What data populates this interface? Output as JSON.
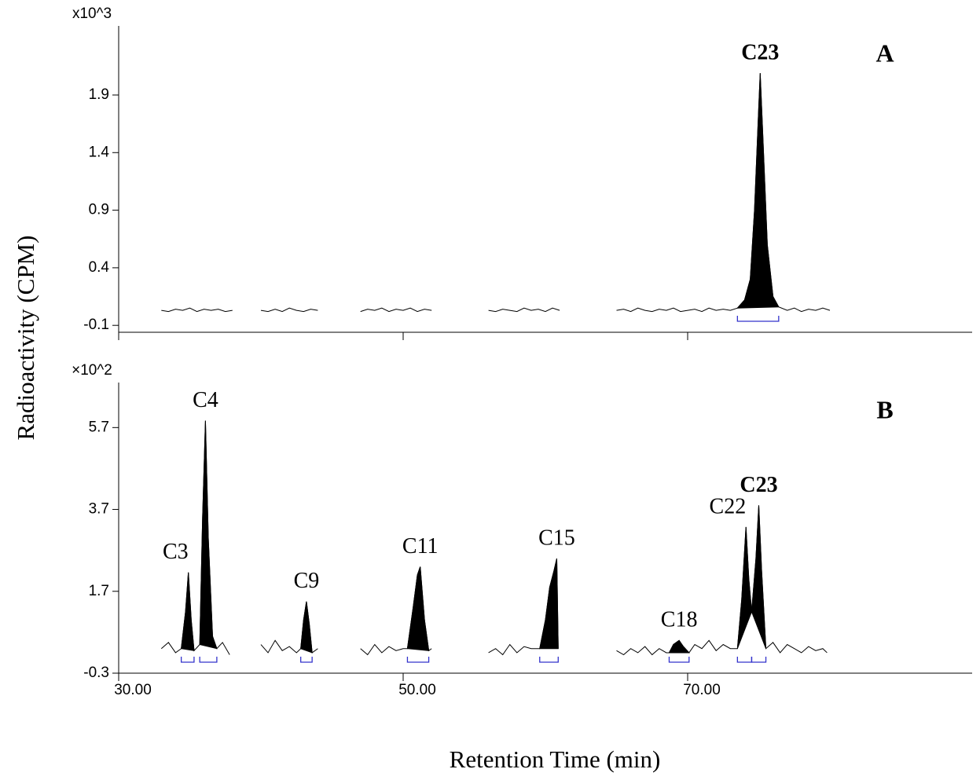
{
  "chart_data": [
    {
      "type": "line",
      "panel": "A",
      "exponent": "x10^3",
      "y_label": "Radioactivity (CPM)",
      "xlim": [
        30,
        90
      ],
      "ylim": [
        -0.16,
        2.5
      ],
      "yticks": [
        -0.1,
        0.4,
        0.9,
        1.4,
        1.9
      ],
      "color": "#000000",
      "bracket_color": "#3333cc",
      "x": [
        33,
        33.5,
        34,
        34.5,
        35,
        35.5,
        36,
        36.5,
        37,
        37.5,
        38,
        39,
        40,
        40.5,
        41,
        41.5,
        42,
        42.5,
        43,
        43.5,
        44,
        45.5,
        47,
        47.5,
        48,
        48.5,
        49,
        49.5,
        50,
        50.5,
        51,
        51.5,
        52,
        54,
        56,
        56.5,
        57,
        57.5,
        58,
        58.5,
        59,
        59.5,
        60,
        60.5,
        61,
        63,
        65,
        65.5,
        66,
        66.5,
        67,
        67.5,
        68,
        68.5,
        69,
        69.5,
        70,
        70.5,
        71,
        71.5,
        72,
        72.5,
        73,
        73.5,
        74,
        74.4,
        74.7,
        75,
        75.1,
        75.3,
        75.6,
        76,
        76.4,
        77,
        77.5,
        78,
        78.5,
        79,
        79.5,
        80
      ],
      "values": [
        0.03,
        0.02,
        0.04,
        0.03,
        0.05,
        0.02,
        0.04,
        0.03,
        0.04,
        0.02,
        0.03,
        null,
        0.03,
        0.02,
        0.04,
        0.02,
        0.05,
        0.03,
        0.02,
        0.04,
        0.03,
        null,
        0.02,
        0.04,
        0.03,
        0.05,
        0.02,
        0.04,
        0.03,
        0.05,
        0.02,
        0.04,
        0.03,
        null,
        0.03,
        0.02,
        0.04,
        0.03,
        0.02,
        0.05,
        0.03,
        0.04,
        0.02,
        0.05,
        0.03,
        null,
        0.03,
        0.04,
        0.02,
        0.05,
        0.03,
        0.02,
        0.04,
        0.03,
        0.05,
        0.02,
        0.03,
        0.04,
        0.02,
        0.05,
        0.03,
        0.04,
        0.03,
        0.05,
        0.12,
        0.3,
        0.9,
        1.8,
        2.09,
        1.5,
        0.6,
        0.15,
        0.06,
        0.03,
        0.05,
        0.02,
        0.04,
        0.03,
        0.05,
        0.03
      ],
      "peaks": [
        {
          "label": "C23",
          "start": 73.5,
          "end": 76.4,
          "bold": true
        }
      ]
    },
    {
      "type": "line",
      "panel": "B",
      "exponent": "×10^2",
      "x_label": "Retention Time (min)",
      "xlim": [
        30,
        90
      ],
      "ylim": [
        -0.3,
        6.8
      ],
      "yticks": [
        -0.3,
        1.7,
        3.7,
        5.7
      ],
      "xticks": [
        {
          "value": 30,
          "label": "30.00"
        },
        {
          "value": 50,
          "label": "50.00"
        },
        {
          "value": 70,
          "label": "70.00"
        }
      ],
      "color": "#000000",
      "bracket_color": "#3333cc",
      "x": [
        33,
        33.5,
        34,
        34.4,
        34.7,
        34.9,
        35.1,
        35.3,
        35.7,
        35.9,
        36.1,
        36.3,
        36.6,
        36.9,
        37.3,
        37.8,
        39,
        40,
        40.5,
        41,
        41.5,
        42,
        42.5,
        42.8,
        43.0,
        43.2,
        43.4,
        43.6,
        44,
        45.5,
        47,
        47.5,
        48,
        48.5,
        49,
        49.5,
        50,
        50.3,
        50.7,
        51.0,
        51.2,
        51.5,
        51.8,
        52,
        54,
        56,
        56.5,
        57,
        57.5,
        58,
        58.5,
        59,
        59.6,
        60,
        60.3,
        60.6,
        60.8,
        60.9,
        63,
        65,
        65.5,
        66,
        66.5,
        67,
        67.5,
        68,
        68.5,
        68.7,
        69.0,
        69.4,
        69.7,
        70.1,
        70.5,
        71,
        71.5,
        72,
        72.5,
        73,
        73.5,
        73.8,
        74.1,
        74.3,
        74.5,
        74.8,
        75.0,
        75.2,
        75.5,
        76,
        76.5,
        77,
        77.5,
        78,
        78.5,
        79,
        79.5,
        79.8
      ],
      "values": [
        0.3,
        0.45,
        0.2,
        0.3,
        1.2,
        2.16,
        1.0,
        0.25,
        0.4,
        3.5,
        5.87,
        3.0,
        0.6,
        0.3,
        0.45,
        0.15,
        null,
        0.4,
        0.2,
        0.5,
        0.25,
        0.35,
        0.2,
        0.3,
        1.0,
        1.45,
        0.9,
        0.2,
        0.3,
        null,
        0.3,
        0.15,
        0.4,
        0.2,
        0.35,
        0.25,
        0.3,
        0.3,
        1.3,
        2.1,
        2.3,
        1.0,
        0.25,
        0.3,
        null,
        0.2,
        0.3,
        0.15,
        0.4,
        0.2,
        0.35,
        0.3,
        0.3,
        1.0,
        1.8,
        2.2,
        2.5,
        0.3,
        null,
        0.25,
        0.15,
        0.3,
        0.2,
        0.35,
        0.15,
        0.3,
        0.2,
        0.2,
        0.4,
        0.5,
        0.35,
        0.2,
        0.4,
        0.3,
        0.5,
        0.25,
        0.4,
        0.3,
        0.3,
        1.5,
        3.27,
        2.0,
        1.2,
        2.5,
        3.8,
        2.2,
        0.3,
        0.45,
        0.2,
        0.4,
        0.3,
        0.2,
        0.35,
        0.25,
        0.3,
        0.2
      ],
      "peaks": [
        {
          "label": "C3",
          "start": 34.4,
          "end": 35.3
        },
        {
          "label": "C4",
          "start": 35.7,
          "end": 36.9
        },
        {
          "label": "C9",
          "start": 42.8,
          "end": 43.6
        },
        {
          "label": "C11",
          "start": 50.3,
          "end": 51.8
        },
        {
          "label": "C15",
          "start": 59.6,
          "end": 60.9
        },
        {
          "label": "C18",
          "start": 68.7,
          "end": 70.1
        },
        {
          "label": "C22",
          "start": 73.5,
          "end": 74.5
        },
        {
          "label": "C23",
          "start": 74.5,
          "end": 75.5,
          "bold": true
        }
      ]
    }
  ]
}
